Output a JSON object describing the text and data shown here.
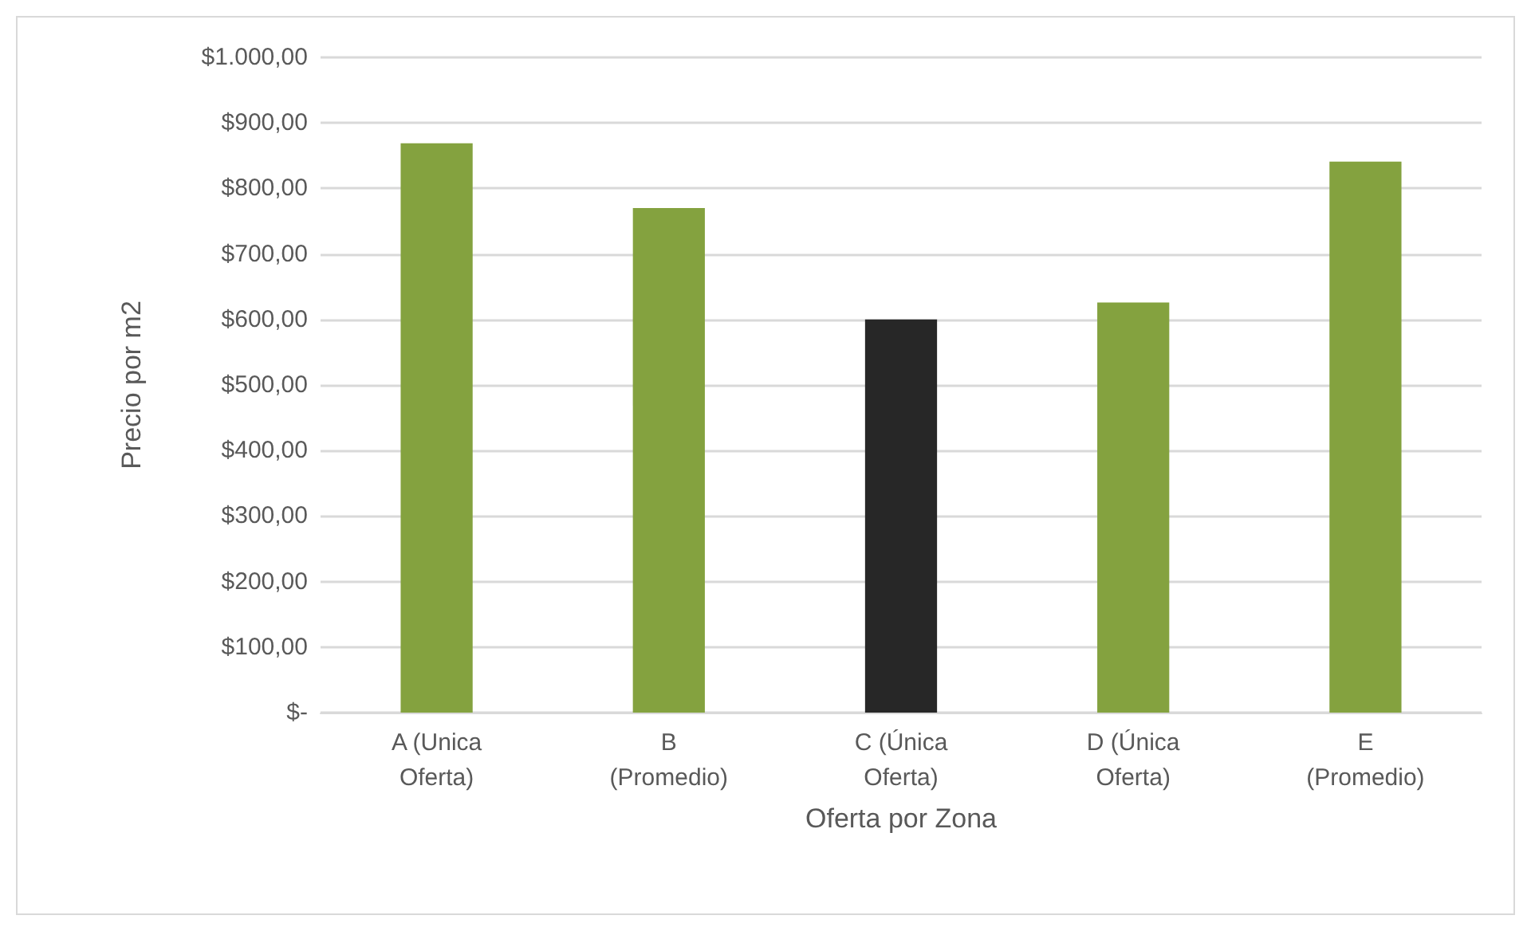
{
  "chart_data": {
    "type": "bar",
    "xlabel": "Oferta por Zona",
    "ylabel": "Precio por m2",
    "categories": [
      "A (Unica Oferta)",
      "B (Promedio)",
      "C (Única Oferta)",
      "D (Única Oferta)",
      "E (Promedio)"
    ],
    "values": [
      869,
      770,
      600,
      626,
      841
    ],
    "colors": [
      "#84a23f",
      "#84a23f",
      "#272727",
      "#84a23f",
      "#84a23f"
    ],
    "ylim": [
      0,
      1000
    ],
    "yticks": [
      {
        "value": 0,
        "label": "$-"
      },
      {
        "value": 100,
        "label": "$100,00"
      },
      {
        "value": 200,
        "label": "$200,00"
      },
      {
        "value": 300,
        "label": "$300,00"
      },
      {
        "value": 400,
        "label": "$400,00"
      },
      {
        "value": 500,
        "label": "$500,00"
      },
      {
        "value": 600,
        "label": "$600,00"
      },
      {
        "value": 700,
        "label": "$700,00"
      },
      {
        "value": 800,
        "label": "$800,00"
      },
      {
        "value": 900,
        "label": "$900,00"
      },
      {
        "value": 1000,
        "label": "$1.000,00"
      }
    ],
    "grid": "y"
  }
}
